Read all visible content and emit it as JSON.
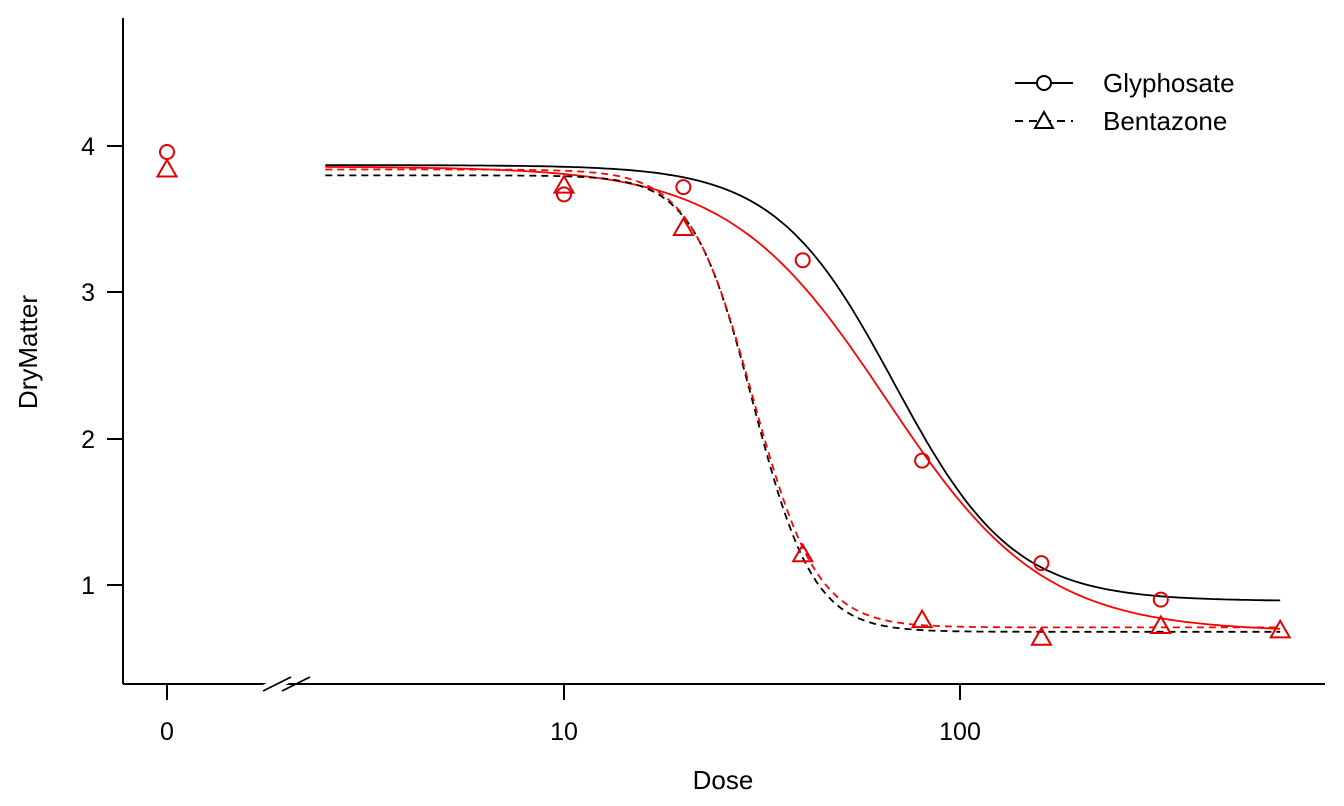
{
  "chart_data": {
    "type": "scatter",
    "title": "",
    "xlabel": "Dose",
    "ylabel": "DryMatter",
    "x_scale": "log",
    "x_break": true,
    "x_tick_labels": [
      "0",
      "10",
      "100"
    ],
    "y_ticks": [
      1,
      2,
      3,
      4
    ],
    "y_tick_labels": [
      "1",
      "2",
      "3",
      "4"
    ],
    "legend_position": "top-right",
    "legend": [
      {
        "label": "Glyphosate",
        "line": "solid",
        "marker": "circle"
      },
      {
        "label": "Bentazone",
        "line": "dashed",
        "marker": "triangle"
      }
    ],
    "series": [
      {
        "name": "Glyphosate",
        "marker": "circle",
        "points": [
          [
            0,
            3.96
          ],
          [
            10,
            3.67
          ],
          [
            20,
            3.72
          ],
          [
            40,
            3.22
          ],
          [
            80,
            1.85
          ],
          [
            160,
            1.15
          ],
          [
            320,
            0.9
          ]
        ],
        "fit_black": {
          "lower": 0.89,
          "upper": 3.87,
          "slope": 2.9,
          "ed50": 68.0
        },
        "fit_red": {
          "lower": 0.68,
          "upper": 3.86,
          "slope": 2.2,
          "ed50": 65.0
        }
      },
      {
        "name": "Bentazone",
        "marker": "triangle",
        "points": [
          [
            0,
            3.84
          ],
          [
            10,
            3.73
          ],
          [
            20,
            3.44
          ],
          [
            40,
            1.21
          ],
          [
            80,
            0.76
          ],
          [
            160,
            0.64
          ],
          [
            320,
            0.72
          ],
          [
            640,
            0.69
          ]
        ],
        "fit_black": {
          "lower": 0.68,
          "upper": 3.8,
          "slope": 5.7,
          "ed50": 30.0
        },
        "fit_red": {
          "lower": 0.71,
          "upper": 3.84,
          "slope": 5.4,
          "ed50": 30.0
        }
      }
    ],
    "colors": {
      "observed": "#e00000",
      "fit_black": "#000000",
      "fit_red": "#ff0000"
    }
  }
}
